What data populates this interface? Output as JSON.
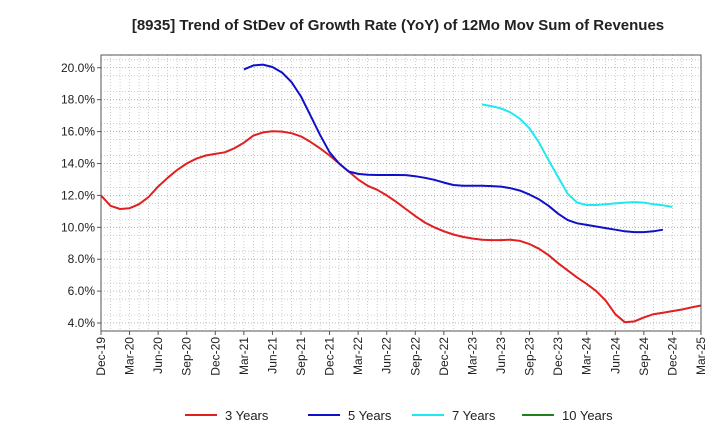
{
  "chart_data": {
    "type": "line",
    "title": "[8935]  Trend of StDev of Growth Rate (YoY) of 12Mo Mov Sum of Revenues",
    "xlabel": "",
    "ylabel": "",
    "ylim": [
      3.5,
      20.8
    ],
    "y_ticks": [
      4.0,
      6.0,
      8.0,
      10.0,
      12.0,
      14.0,
      16.0,
      18.0,
      20.0
    ],
    "y_tick_labels": [
      "4.0%",
      "6.0%",
      "8.0%",
      "10.0%",
      "12.0%",
      "14.0%",
      "16.0%",
      "18.0%",
      "20.0%"
    ],
    "x_start": "Dec-19",
    "x_tick_labels": [
      "Dec-19",
      "Mar-20",
      "Jun-20",
      "Sep-20",
      "Dec-20",
      "Mar-21",
      "Jun-21",
      "Sep-21",
      "Dec-21",
      "Mar-22",
      "Jun-22",
      "Sep-22",
      "Dec-22",
      "Mar-23",
      "Jun-23",
      "Sep-23",
      "Dec-23",
      "Mar-24",
      "Jun-24",
      "Sep-24",
      "Dec-24",
      "Mar-25"
    ],
    "grid": true,
    "legend_position": "bottom",
    "series": [
      {
        "name": "3 Years",
        "color": "#e02020",
        "start_index": 0,
        "values": [
          12.0,
          11.35,
          11.15,
          11.2,
          11.45,
          11.9,
          12.55,
          13.1,
          13.6,
          14.0,
          14.3,
          14.5,
          14.6,
          14.7,
          14.95,
          15.3,
          15.75,
          15.95,
          16.02,
          16.0,
          15.9,
          15.7,
          15.35,
          14.95,
          14.5,
          14.0,
          13.5,
          13.0,
          12.6,
          12.35,
          12.0,
          11.6,
          11.15,
          10.7,
          10.3,
          10.0,
          9.75,
          9.55,
          9.4,
          9.3,
          9.22,
          9.2,
          9.2,
          9.22,
          9.15,
          8.95,
          8.65,
          8.25,
          7.75,
          7.3,
          6.85,
          6.45,
          6.0,
          5.4,
          4.55,
          4.05,
          4.1,
          4.35,
          4.55,
          4.65,
          4.75,
          4.85,
          4.98,
          5.1
        ]
      },
      {
        "name": "5 Years",
        "color": "#1010c8",
        "start_index": 15,
        "values": [
          19.9,
          20.15,
          20.2,
          20.05,
          19.7,
          19.1,
          18.2,
          17.0,
          15.8,
          14.7,
          14.0,
          13.5,
          13.35,
          13.3,
          13.28,
          13.28,
          13.28,
          13.27,
          13.2,
          13.1,
          12.98,
          12.8,
          12.65,
          12.6,
          12.6,
          12.6,
          12.58,
          12.55,
          12.45,
          12.3,
          12.05,
          11.75,
          11.35,
          10.85,
          10.45,
          10.25,
          10.15,
          10.05,
          9.95,
          9.85,
          9.75,
          9.7,
          9.7,
          9.75,
          9.85
        ]
      },
      {
        "name": "7 Years",
        "color": "#20e8f0",
        "start_index": 40,
        "values": [
          17.7,
          17.6,
          17.45,
          17.2,
          16.8,
          16.2,
          15.3,
          14.2,
          13.15,
          12.1,
          11.55,
          11.4,
          11.4,
          11.45,
          11.5,
          11.55,
          11.58,
          11.55,
          11.45,
          11.38,
          11.28
        ]
      },
      {
        "name": "10 Years",
        "color": "#208020",
        "start_index": 0,
        "values": []
      }
    ]
  }
}
